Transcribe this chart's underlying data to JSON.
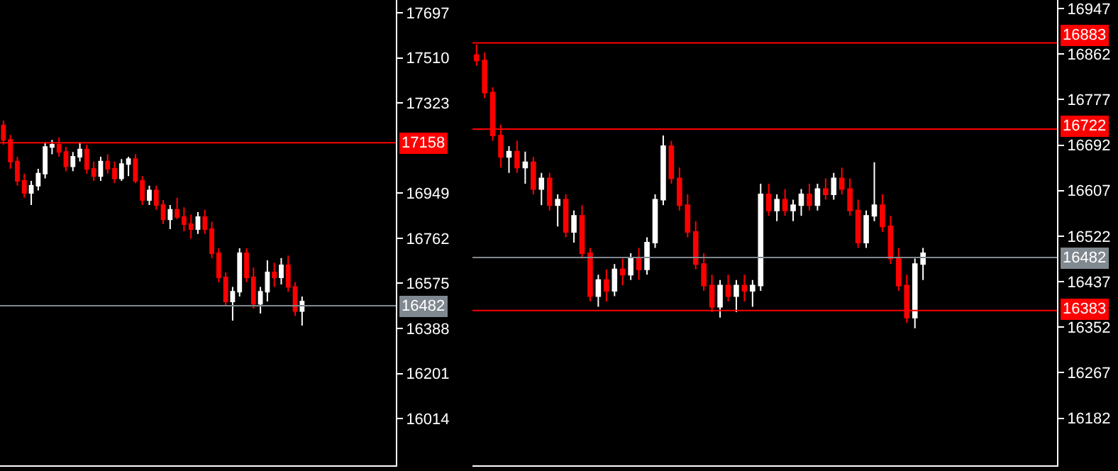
{
  "chart_data": [
    {
      "type": "candlestick",
      "tick_labels": "y",
      "grid": false,
      "categories": [
        null,
        null,
        null,
        null,
        null,
        null,
        null,
        null,
        null,
        null,
        null,
        null,
        null,
        null,
        null,
        null,
        null,
        null,
        null,
        null,
        null,
        null,
        null,
        null,
        null,
        null,
        null,
        null,
        null,
        null,
        null,
        null,
        null,
        null,
        null,
        null,
        null,
        null,
        null,
        null,
        null,
        null,
        null,
        null,
        null,
        null,
        null,
        null,
        null,
        null,
        null,
        null,
        null,
        null,
        null,
        null,
        null
      ],
      "ohlc": [
        [
          17230,
          17250,
          17150,
          17170
        ],
        [
          17170,
          17190,
          17050,
          17080
        ],
        [
          17080,
          17100,
          16980,
          17000
        ],
        [
          17000,
          17030,
          16930,
          16950
        ],
        [
          16950,
          17000,
          16900,
          16980
        ],
        [
          16980,
          17050,
          16960,
          17030
        ],
        [
          17030,
          17160,
          17010,
          17140
        ],
        [
          17140,
          17170,
          17110,
          17150
        ],
        [
          17150,
          17180,
          17100,
          17120
        ],
        [
          17120,
          17140,
          17040,
          17060
        ],
        [
          17060,
          17120,
          17040,
          17100
        ],
        [
          17100,
          17160,
          17080,
          17130
        ],
        [
          17130,
          17150,
          17030,
          17050
        ],
        [
          17050,
          17080,
          17000,
          17020
        ],
        [
          17020,
          17100,
          17000,
          17080
        ],
        [
          17080,
          17110,
          17030,
          17050
        ],
        [
          17050,
          17080,
          16990,
          17010
        ],
        [
          17010,
          17090,
          17000,
          17070
        ],
        [
          17070,
          17100,
          17020,
          17090
        ],
        [
          17090,
          17110,
          16990,
          17000
        ],
        [
          17000,
          17020,
          16900,
          16920
        ],
        [
          16920,
          16980,
          16900,
          16960
        ],
        [
          16960,
          16980,
          16880,
          16900
        ],
        [
          16900,
          16920,
          16820,
          16840
        ],
        [
          16840,
          16900,
          16800,
          16880
        ],
        [
          16880,
          16930,
          16840,
          16850
        ],
        [
          16850,
          16890,
          16790,
          16820
        ],
        [
          16820,
          16860,
          16760,
          16800
        ],
        [
          16800,
          16870,
          16780,
          16850
        ],
        [
          16850,
          16880,
          16780,
          16800
        ],
        [
          16800,
          16830,
          16680,
          16700
        ],
        [
          16700,
          16720,
          16580,
          16600
        ],
        [
          16600,
          16620,
          16480,
          16500
        ],
        [
          16500,
          16560,
          16420,
          16540
        ],
        [
          16540,
          16720,
          16520,
          16700
        ],
        [
          16700,
          16720,
          16580,
          16600
        ],
        [
          16600,
          16640,
          16470,
          16490
        ],
        [
          16490,
          16560,
          16450,
          16540
        ],
        [
          16540,
          16670,
          16500,
          16620
        ],
        [
          16620,
          16660,
          16560,
          16600
        ],
        [
          16600,
          16680,
          16570,
          16650
        ],
        [
          16650,
          16690,
          16540,
          16560
        ],
        [
          16560,
          16580,
          16440,
          16460
        ],
        [
          16460,
          16520,
          16400,
          16500
        ],
        null,
        null,
        null,
        null,
        null,
        null,
        null,
        null,
        null,
        null,
        null,
        null,
        null
      ],
      "ylim": [
        15820,
        17750
      ],
      "yticks": [
        17697,
        17510,
        17323,
        16949,
        16762,
        16575,
        16388,
        16201,
        16014
      ],
      "ref_lines": [
        {
          "axis": "y",
          "value": 17158,
          "label": "17158",
          "color": "#ff0000"
        },
        {
          "axis": "y",
          "value": 16482,
          "label": "16482",
          "color": "#808890"
        }
      ]
    },
    {
      "type": "candlestick",
      "tick_labels": "y",
      "grid": false,
      "categories": [
        null,
        null,
        null,
        null,
        null,
        null,
        null,
        null,
        null,
        null,
        null,
        null,
        null,
        null,
        null,
        null,
        null,
        null,
        null,
        null,
        null,
        null,
        null,
        null,
        null,
        null,
        null,
        null,
        null,
        null,
        null,
        null,
        null,
        null,
        null,
        null,
        null,
        null,
        null,
        null,
        null,
        null,
        null,
        null,
        null,
        null,
        null,
        null,
        null,
        null,
        null,
        null,
        null,
        null,
        null,
        null,
        null,
        null,
        null,
        null,
        null,
        null,
        null,
        null,
        null,
        null,
        null,
        null,
        null,
        null,
        null,
        null
      ],
      "ohlc": [
        [
          16860,
          16880,
          16840,
          16850
        ],
        [
          16850,
          16865,
          16780,
          16790
        ],
        [
          16790,
          16800,
          16700,
          16710
        ],
        [
          16710,
          16730,
          16650,
          16670
        ],
        [
          16670,
          16690,
          16640,
          16680
        ],
        [
          16680,
          16700,
          16640,
          16650
        ],
        [
          16650,
          16680,
          16620,
          16660
        ],
        [
          16660,
          16670,
          16600,
          16610
        ],
        [
          16610,
          16640,
          16580,
          16630
        ],
        [
          16630,
          16640,
          16570,
          16580
        ],
        [
          16580,
          16600,
          16540,
          16590
        ],
        [
          16590,
          16600,
          16520,
          16530
        ],
        [
          16530,
          16570,
          16510,
          16560
        ],
        [
          16560,
          16580,
          16480,
          16490
        ],
        [
          16490,
          16500,
          16400,
          16410
        ],
        [
          16410,
          16450,
          16390,
          16440
        ],
        [
          16440,
          16460,
          16400,
          16420
        ],
        [
          16420,
          16470,
          16410,
          16460
        ],
        [
          16460,
          16480,
          16430,
          16450
        ],
        [
          16450,
          16490,
          16440,
          16480
        ],
        [
          16480,
          16500,
          16440,
          16460
        ],
        [
          16460,
          16520,
          16450,
          16510
        ],
        [
          16510,
          16600,
          16500,
          16590
        ],
        [
          16590,
          16710,
          16580,
          16690
        ],
        [
          16690,
          16700,
          16620,
          16630
        ],
        [
          16630,
          16650,
          16570,
          16580
        ],
        [
          16580,
          16600,
          16520,
          16530
        ],
        [
          16530,
          16550,
          16460,
          16470
        ],
        [
          16470,
          16490,
          16420,
          16430
        ],
        [
          16430,
          16450,
          16380,
          16390
        ],
        [
          16390,
          16440,
          16370,
          16430
        ],
        [
          16430,
          16450,
          16400,
          16410
        ],
        [
          16410,
          16440,
          16380,
          16430
        ],
        [
          16430,
          16450,
          16400,
          16420
        ],
        [
          16420,
          16440,
          16390,
          16430
        ],
        [
          16430,
          16620,
          16420,
          16600
        ],
        [
          16600,
          16620,
          16560,
          16570
        ],
        [
          16570,
          16600,
          16550,
          16590
        ],
        [
          16590,
          16610,
          16560,
          16570
        ],
        [
          16570,
          16590,
          16550,
          16580
        ],
        [
          16580,
          16610,
          16560,
          16600
        ],
        [
          16600,
          16620,
          16570,
          16580
        ],
        [
          16580,
          16620,
          16570,
          16610
        ],
        [
          16610,
          16630,
          16590,
          16600
        ],
        [
          16600,
          16640,
          16590,
          16630
        ],
        [
          16630,
          16650,
          16600,
          16610
        ],
        [
          16610,
          16630,
          16560,
          16570
        ],
        [
          16570,
          16590,
          16500,
          16510
        ],
        [
          16510,
          16570,
          16500,
          16560
        ],
        [
          16560,
          16660,
          16550,
          16580
        ],
        [
          16580,
          16600,
          16530,
          16540
        ],
        [
          16540,
          16560,
          16470,
          16480
        ],
        [
          16480,
          16500,
          16420,
          16430
        ],
        [
          16430,
          16450,
          16360,
          16370
        ],
        [
          16370,
          16480,
          16350,
          16470
        ],
        [
          16470,
          16500,
          16440,
          16490
        ],
        null,
        null,
        null,
        null,
        null,
        null,
        null,
        null,
        null,
        null,
        null,
        null,
        null,
        null,
        null,
        null
      ],
      "ylim": [
        16094,
        16963
      ],
      "yticks": [
        16947,
        16862,
        16777,
        16692,
        16607,
        16522,
        16437,
        16352,
        16267,
        16182
      ],
      "ref_lines": [
        {
          "axis": "y",
          "value": 16883,
          "label": "16883",
          "color": "#ff0000"
        },
        {
          "axis": "y",
          "value": 16722,
          "label": "16722",
          "color": "#ff0000"
        },
        {
          "axis": "y",
          "value": 16482,
          "label": "16482",
          "color": "#808890"
        },
        {
          "axis": "y",
          "value": 16383,
          "label": "16383",
          "color": "#ff0000"
        }
      ]
    }
  ]
}
